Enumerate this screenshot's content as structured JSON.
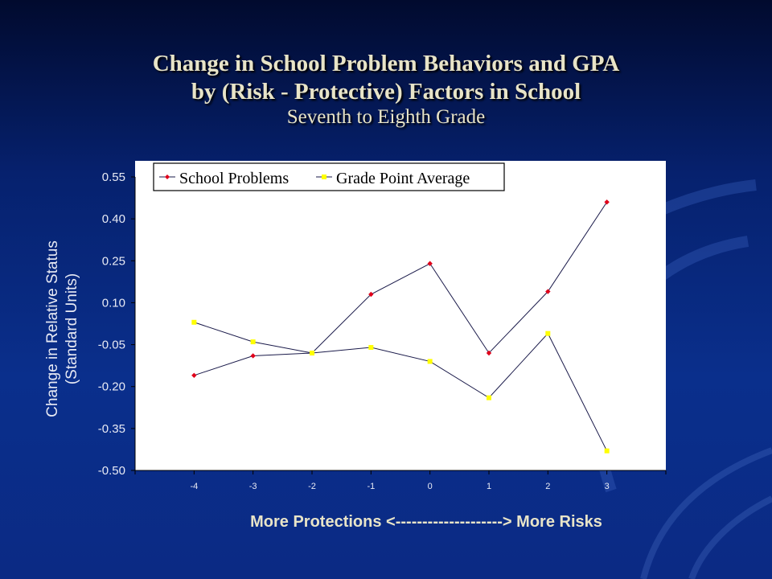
{
  "slide": {
    "title_line1": "Change in School Problem Behaviors and GPA",
    "title_line2": "by (Risk - Protective) Factors in School",
    "subtitle": "Seventh to Eighth Grade"
  },
  "colors": {
    "background_top": "#010a2e",
    "background_bottom": "#0b2a84",
    "plot_area": "#ffffff",
    "school_problems": "#e0001a",
    "gpa": "#ffff00",
    "series_line": "#1a1a4a",
    "title_text": "#e8e4c8"
  },
  "chart_data": {
    "type": "line",
    "title": "Change in School Problem Behaviors and GPA by (Risk - Protective) Factors in School",
    "subtitle": "Seventh to Eighth Grade",
    "ylabel_line1": "Change in Relative Status",
    "ylabel_line2": "(Standard Units)",
    "xlabel": "More Protections <--------------------> More Risks",
    "x": [
      -4,
      -3,
      -2,
      -1,
      0,
      1,
      2,
      3
    ],
    "x_tick_labels": [
      "-4",
      "-3",
      "-2",
      "-1",
      "0",
      "1",
      "2",
      "3"
    ],
    "y_tick_labels": [
      "0.55",
      "0.40",
      "0.25",
      "0.10",
      "-0.05",
      "-0.20",
      "-0.35",
      "-0.50"
    ],
    "y_ticks": [
      0.55,
      0.4,
      0.25,
      0.1,
      -0.05,
      -0.2,
      -0.35,
      -0.5
    ],
    "ylim": [
      -0.5,
      0.55
    ],
    "xlim": [
      -5,
      4
    ],
    "grid": false,
    "legend_position": "top",
    "series": [
      {
        "name": "School Problems",
        "color": "#e0001a",
        "marker": "diamond",
        "values": [
          -0.16,
          -0.09,
          -0.08,
          0.13,
          0.24,
          -0.08,
          0.14,
          0.46
        ]
      },
      {
        "name": "Grade Point Average",
        "color": "#ffff00",
        "marker": "square",
        "values": [
          0.03,
          -0.04,
          -0.08,
          -0.06,
          -0.11,
          -0.24,
          -0.01,
          -0.43
        ]
      }
    ]
  }
}
